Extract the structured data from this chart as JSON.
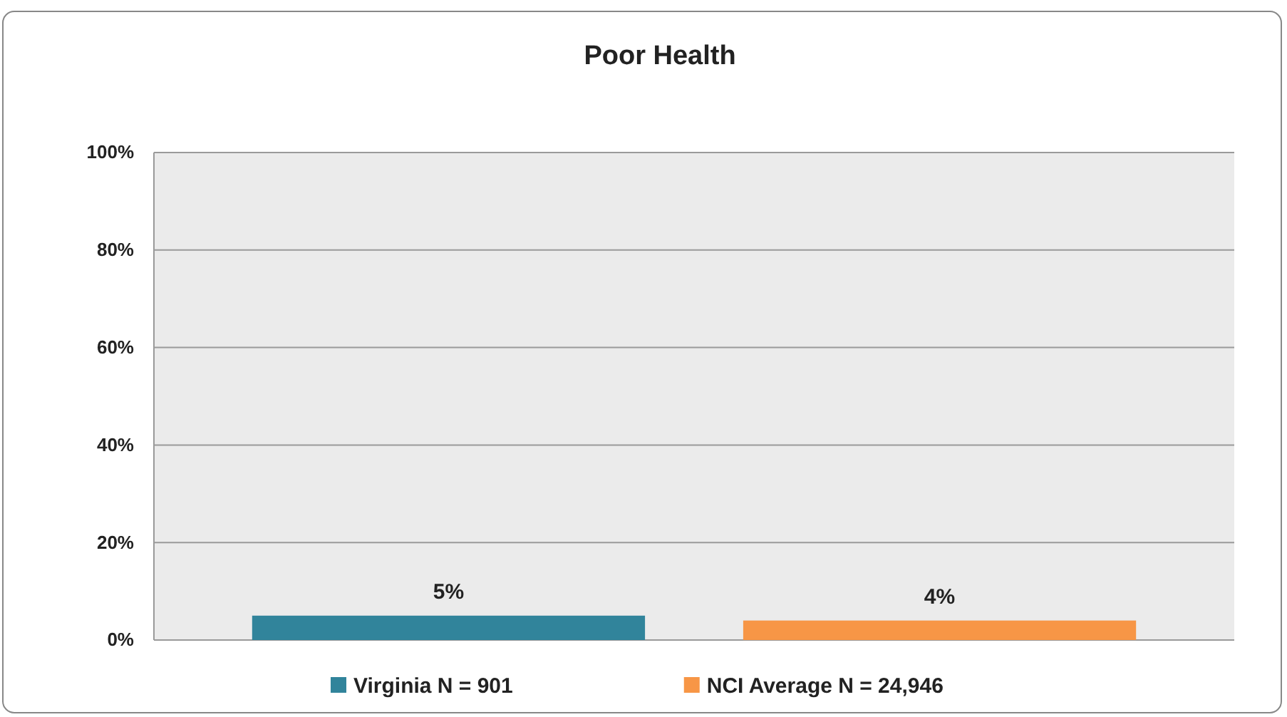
{
  "chart_data": {
    "type": "bar",
    "title": "Poor Health",
    "categories": [
      null
    ],
    "series": [
      {
        "name": "Virginia N = 901",
        "color": "#31849b",
        "values": [
          5
        ],
        "value_labels": [
          "5%"
        ]
      },
      {
        "name": "NCI Average N = 24,946",
        "color": "#f79646",
        "values": [
          4
        ],
        "value_labels": [
          "4%"
        ]
      }
    ],
    "ylim": [
      0,
      100
    ],
    "yticks": [
      {
        "value": 0,
        "label": "0%"
      },
      {
        "value": 20,
        "label": "20%"
      },
      {
        "value": 40,
        "label": "40%"
      },
      {
        "value": 60,
        "label": "60%"
      },
      {
        "value": 80,
        "label": "80%"
      },
      {
        "value": 100,
        "label": "100%"
      }
    ],
    "grid": "y",
    "legend": "bottom"
  }
}
